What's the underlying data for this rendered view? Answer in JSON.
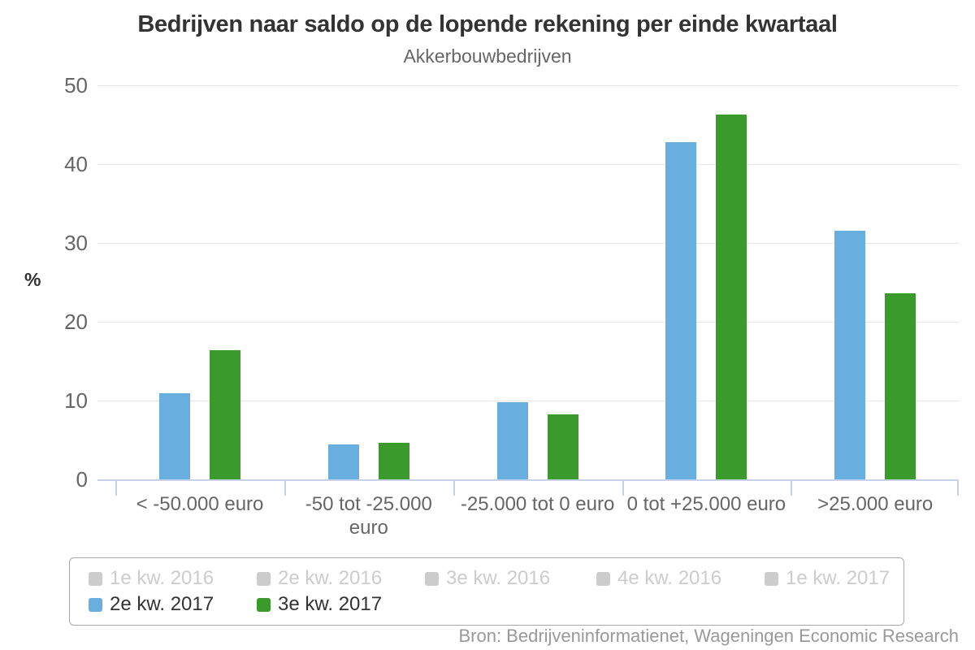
{
  "chart_data": {
    "type": "bar",
    "title": "Bedrijven naar saldo op de lopende rekening per einde kwartaal",
    "subtitle": "Akkerbouwbedrijven",
    "ylabel": "%",
    "ylim": [
      0,
      50
    ],
    "yticks": [
      0,
      10,
      20,
      30,
      40,
      50
    ],
    "grid": true,
    "legend_position": "bottom",
    "credits": "Bron: Bedrijveninformatienet, Wageningen Economic Research",
    "categories": [
      "< -50.000 euro",
      "-50 tot -25.000 euro",
      "-25.000 tot 0 euro",
      "0 tot +25.000 euro",
      ">25.000 euro"
    ],
    "series": [
      {
        "name": "1e kw. 2016",
        "visible": false,
        "legend_color": "#cccccc"
      },
      {
        "name": "2e kw. 2016",
        "visible": false,
        "legend_color": "#cccccc"
      },
      {
        "name": "3e kw. 2016",
        "visible": false,
        "legend_color": "#cccccc"
      },
      {
        "name": "4e kw. 2016",
        "visible": false,
        "legend_color": "#cccccc"
      },
      {
        "name": "1e kw. 2017",
        "visible": false,
        "legend_color": "#cccccc"
      },
      {
        "name": "2e kw. 2017",
        "visible": true,
        "legend_color": "#68aedf",
        "color": "#68aedf",
        "values": [
          10.9,
          4.4,
          9.8,
          42.8,
          31.5
        ]
      },
      {
        "name": "3e kw. 2017",
        "visible": true,
        "legend_color": "#3a9a2b",
        "color": "#3a9a2b",
        "values": [
          16.4,
          4.6,
          8.3,
          46.3,
          23.6
        ]
      }
    ]
  }
}
